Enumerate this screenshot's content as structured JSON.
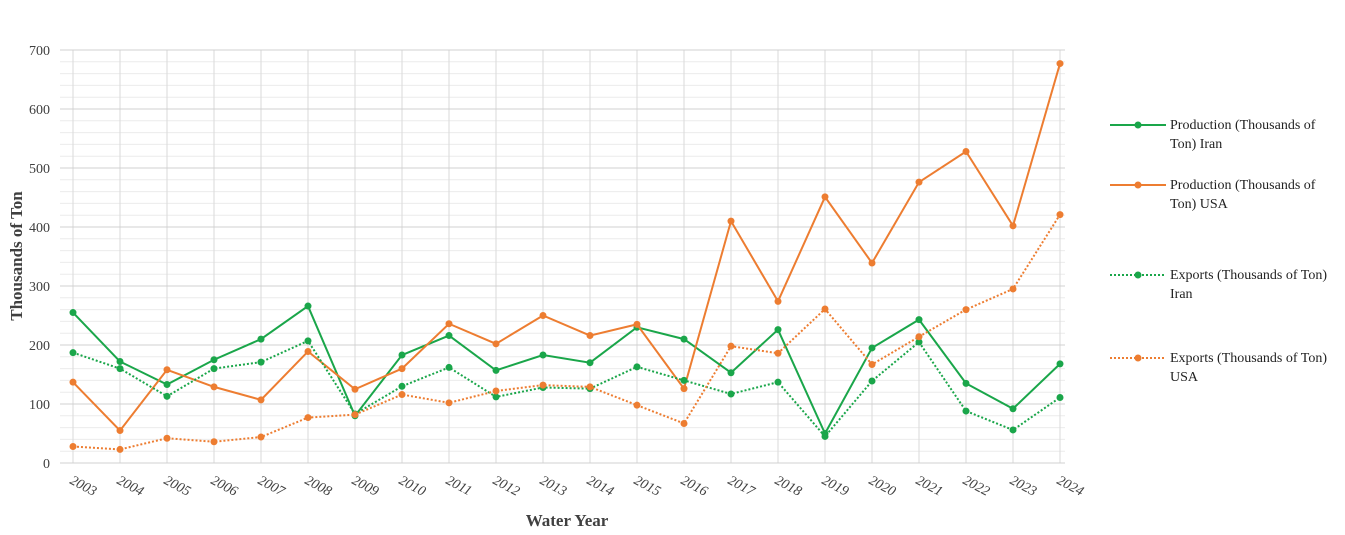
{
  "chart_data": {
    "type": "line",
    "y_label": "Thousands of Ton",
    "x_label": "Water Year",
    "categories": [
      "2003",
      "2004",
      "2005",
      "2006",
      "2007",
      "2008",
      "2009",
      "2010",
      "2011",
      "2012",
      "2013",
      "2014",
      "2015",
      "2016",
      "2017",
      "2018",
      "2019",
      "2020",
      "2021",
      "2022",
      "2023",
      "2024"
    ],
    "series": [
      {
        "name": "Production (Thousands of Ton) Iran",
        "color": "#1aa64a",
        "line_style": "solid",
        "values": [
          255,
          172,
          133,
          175,
          210,
          266,
          80,
          183,
          216,
          157,
          183,
          170,
          230,
          210,
          153,
          226,
          50,
          195,
          243,
          135,
          92,
          168
        ]
      },
      {
        "name": "Production (Thousands of Ton) USA",
        "color": "#ed7d31",
        "line_style": "solid",
        "values": [
          137,
          55,
          158,
          129,
          107,
          189,
          125,
          160,
          236,
          202,
          250,
          216,
          235,
          126,
          410,
          274,
          451,
          339,
          476,
          528,
          402,
          677
        ]
      },
      {
        "name": "Exports (Thousands of Ton) Iran",
        "color": "#1aa64a",
        "line_style": "dotted",
        "values": [
          187,
          160,
          113,
          160,
          171,
          207,
          83,
          130,
          162,
          112,
          128,
          126,
          163,
          140,
          117,
          137,
          45,
          139,
          205,
          88,
          56,
          111
        ]
      },
      {
        "name": "Exports (Thousands of Ton) USA",
        "color": "#ed7d31",
        "line_style": "dotted",
        "values": [
          28,
          23,
          42,
          36,
          44,
          77,
          82,
          116,
          102,
          122,
          132,
          129,
          98,
          67,
          198,
          186,
          261,
          167,
          214,
          260,
          295,
          421
        ]
      }
    ],
    "ylim": [
      0,
      700
    ],
    "yticks": [
      0,
      100,
      200,
      300,
      400,
      500,
      600,
      700
    ],
    "grid": true
  }
}
